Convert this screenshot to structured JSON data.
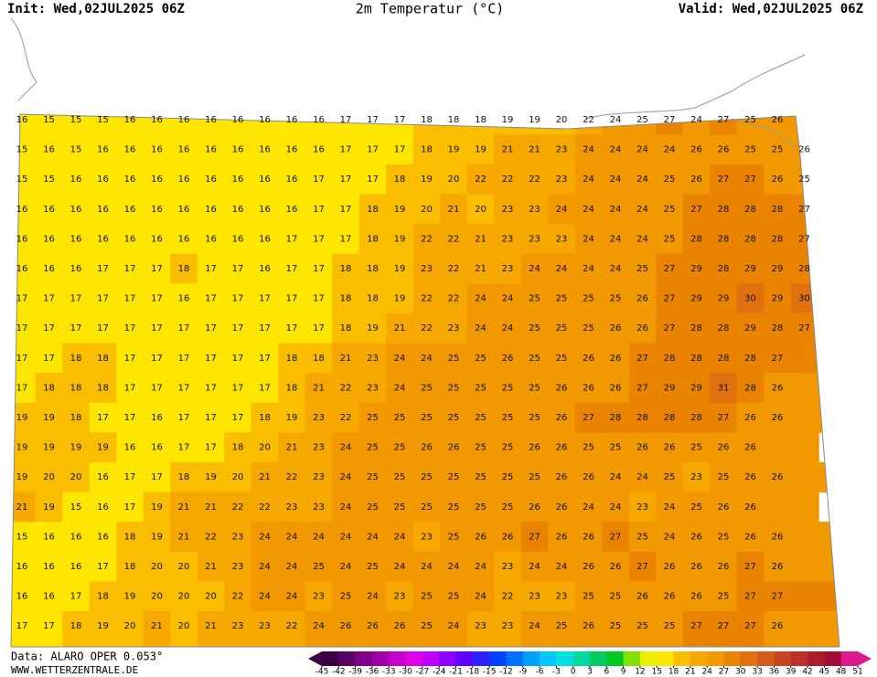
{
  "header": {
    "init": "Init: Wed,02JUL2025 06Z",
    "title": "2m Temperatur (°C)",
    "valid": "Valid: Wed,02JUL2025 06Z"
  },
  "footer": {
    "data": "Data: ALARO OPER 0.053°",
    "site": "WWW.WETTERZENTRALE.DE"
  },
  "grid": {
    "rows": [
      [
        16,
        15,
        15,
        15,
        16,
        16,
        16,
        16,
        16,
        16,
        16,
        16,
        17,
        17,
        17,
        18,
        18,
        18,
        19,
        19,
        20,
        22,
        24,
        25,
        27,
        24,
        27,
        25,
        26
      ],
      [
        15,
        16,
        15,
        16,
        16,
        16,
        16,
        16,
        16,
        16,
        16,
        16,
        17,
        17,
        17,
        18,
        19,
        19,
        21,
        21,
        23,
        24,
        24,
        24,
        24,
        26,
        26,
        25,
        25,
        26
      ],
      [
        15,
        15,
        16,
        16,
        16,
        16,
        16,
        16,
        16,
        16,
        16,
        17,
        17,
        17,
        18,
        19,
        20,
        22,
        22,
        22,
        23,
        24,
        24,
        24,
        25,
        26,
        27,
        27,
        26,
        25
      ],
      [
        16,
        16,
        16,
        16,
        16,
        16,
        16,
        16,
        16,
        16,
        16,
        17,
        17,
        18,
        19,
        20,
        21,
        20,
        23,
        23,
        24,
        24,
        24,
        24,
        25,
        27,
        28,
        28,
        28,
        27
      ],
      [
        16,
        16,
        16,
        16,
        16,
        16,
        16,
        16,
        16,
        16,
        17,
        17,
        17,
        18,
        19,
        22,
        22,
        21,
        23,
        23,
        23,
        24,
        24,
        24,
        25,
        28,
        28,
        28,
        28,
        27
      ],
      [
        16,
        16,
        16,
        17,
        17,
        17,
        18,
        17,
        17,
        16,
        17,
        17,
        18,
        18,
        19,
        23,
        22,
        21,
        23,
        24,
        24,
        24,
        24,
        25,
        27,
        29,
        28,
        29,
        29,
        28
      ],
      [
        17,
        17,
        17,
        17,
        17,
        17,
        16,
        17,
        17,
        17,
        17,
        17,
        18,
        18,
        19,
        22,
        22,
        24,
        24,
        25,
        25,
        25,
        25,
        26,
        27,
        29,
        29,
        30,
        29,
        30
      ],
      [
        17,
        17,
        17,
        17,
        17,
        17,
        17,
        17,
        17,
        17,
        17,
        17,
        18,
        19,
        21,
        22,
        23,
        24,
        24,
        25,
        25,
        25,
        26,
        26,
        27,
        28,
        28,
        29,
        28,
        27
      ],
      [
        17,
        17,
        18,
        18,
        17,
        17,
        17,
        17,
        17,
        17,
        18,
        18,
        21,
        23,
        24,
        24,
        25,
        25,
        26,
        25,
        25,
        26,
        26,
        27,
        28,
        28,
        28,
        28,
        27
      ],
      [
        17,
        18,
        18,
        18,
        17,
        17,
        17,
        17,
        17,
        17,
        18,
        21,
        22,
        23,
        24,
        25,
        25,
        25,
        25,
        25,
        26,
        26,
        26,
        27,
        29,
        29,
        31,
        28,
        26
      ],
      [
        19,
        19,
        18,
        17,
        17,
        16,
        17,
        17,
        17,
        18,
        19,
        23,
        22,
        25,
        25,
        25,
        25,
        25,
        25,
        25,
        26,
        27,
        28,
        28,
        28,
        28,
        27,
        26,
        26
      ],
      [
        19,
        19,
        19,
        19,
        16,
        16,
        17,
        17,
        18,
        20,
        21,
        23,
        24,
        25,
        25,
        26,
        26,
        25,
        25,
        26,
        26,
        25,
        25,
        26,
        26,
        25,
        26,
        26
      ],
      [
        19,
        20,
        20,
        16,
        17,
        17,
        18,
        19,
        20,
        21,
        22,
        23,
        24,
        25,
        25,
        25,
        25,
        25,
        25,
        25,
        26,
        26,
        24,
        24,
        25,
        23,
        25,
        26,
        26
      ],
      [
        21,
        19,
        15,
        16,
        17,
        19,
        21,
        21,
        22,
        22,
        23,
        23,
        24,
        25,
        25,
        25,
        25,
        25,
        25,
        26,
        26,
        24,
        24,
        23,
        24,
        25,
        26,
        26
      ],
      [
        15,
        16,
        16,
        16,
        18,
        19,
        21,
        22,
        23,
        24,
        24,
        24,
        24,
        24,
        24,
        23,
        25,
        26,
        26,
        27,
        26,
        26,
        27,
        25,
        24,
        26,
        25,
        26,
        26
      ],
      [
        16,
        16,
        16,
        17,
        18,
        20,
        20,
        21,
        23,
        24,
        24,
        25,
        24,
        25,
        24,
        24,
        24,
        24,
        23,
        24,
        24,
        26,
        26,
        27,
        26,
        26,
        26,
        27,
        26
      ],
      [
        16,
        16,
        17,
        18,
        19,
        20,
        20,
        20,
        22,
        24,
        24,
        23,
        25,
        24,
        23,
        25,
        25,
        24,
        22,
        23,
        23,
        25,
        25,
        26,
        26,
        26,
        25,
        27,
        27
      ],
      [
        17,
        17,
        18,
        19,
        20,
        21,
        20,
        21,
        23,
        23,
        22,
        24,
        26,
        26,
        26,
        25,
        24,
        23,
        23,
        24,
        25,
        26,
        25,
        25,
        25,
        27,
        27,
        27,
        26
      ]
    ]
  },
  "colorbar": {
    "ticks": [
      -45,
      -42,
      -39,
      -36,
      -33,
      -30,
      -27,
      -24,
      -21,
      -18,
      -15,
      -12,
      -9,
      -6,
      -3,
      0,
      3,
      6,
      9,
      12,
      15,
      18,
      21,
      24,
      27,
      30,
      33,
      36,
      39,
      42,
      45,
      48,
      51
    ],
    "colors": [
      "#3a0040",
      "#5c0066",
      "#7e0088",
      "#a000aa",
      "#c400cc",
      "#e000e8",
      "#c000ff",
      "#9000ff",
      "#6000ff",
      "#3020ff",
      "#0040ff",
      "#0070ff",
      "#00a0ff",
      "#00c8ff",
      "#00e0e0",
      "#00d8a0",
      "#00cc60",
      "#00c820",
      "#80e000",
      "#e8f000",
      "#ffe600",
      "#fbbd00",
      "#f6a800",
      "#f29800",
      "#ea8400",
      "#e07010",
      "#d65a1c",
      "#ca4424",
      "#bc3028",
      "#ac1c2c",
      "#a00c34",
      "#e01890"
    ]
  }
}
